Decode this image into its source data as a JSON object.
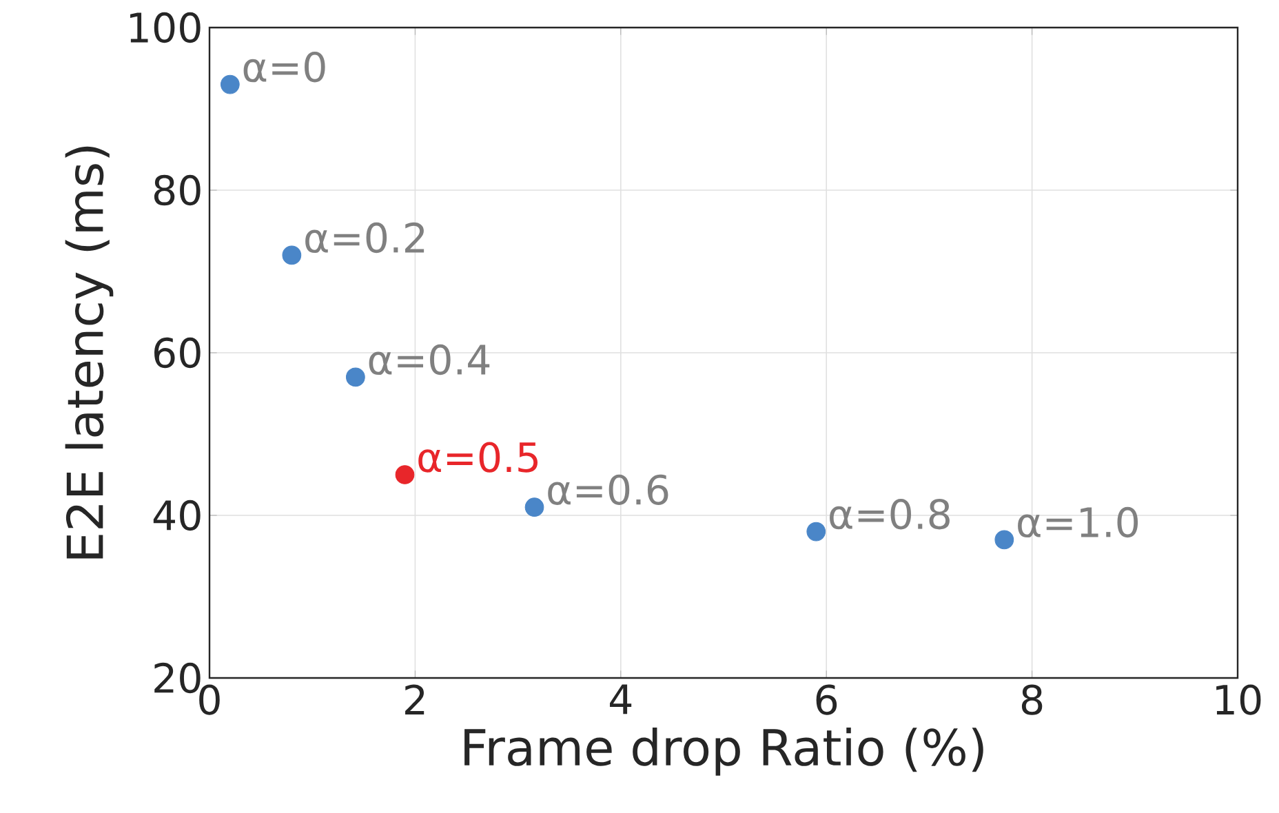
{
  "chart_data": {
    "type": "scatter",
    "xlabel": "Frame drop Ratio (%)",
    "ylabel": "E2E latency (ms)",
    "x": [
      0.2,
      0.8,
      1.42,
      1.9,
      3.16,
      5.9,
      7.73
    ],
    "values": [
      93,
      72,
      57,
      45,
      41,
      38,
      37
    ],
    "color": "#4a86c8",
    "colors": [
      "#4a86c8",
      "#4a86c8",
      "#4a86c8",
      "#e8262a",
      "#4a86c8",
      "#4a86c8",
      "#4a86c8"
    ],
    "annotations": [
      {
        "text": "α=0",
        "x": 0.2,
        "y": 93
      },
      {
        "text": "α=0.2",
        "x": 0.8,
        "y": 72
      },
      {
        "text": "α=0.4",
        "x": 1.42,
        "y": 57
      },
      {
        "text": "α=0.5",
        "x": 1.9,
        "y": 45
      },
      {
        "text": "α=0.6",
        "x": 3.16,
        "y": 41
      },
      {
        "text": "α=0.8",
        "x": 5.9,
        "y": 38
      },
      {
        "text": "α=1.0",
        "x": 7.73,
        "y": 37
      }
    ],
    "xlim": [
      0,
      10
    ],
    "ylim": [
      20,
      100
    ],
    "xticks": [
      0,
      2,
      4,
      6,
      8,
      10
    ],
    "yticks": [
      20,
      40,
      60,
      80,
      100
    ],
    "grid": true
  }
}
